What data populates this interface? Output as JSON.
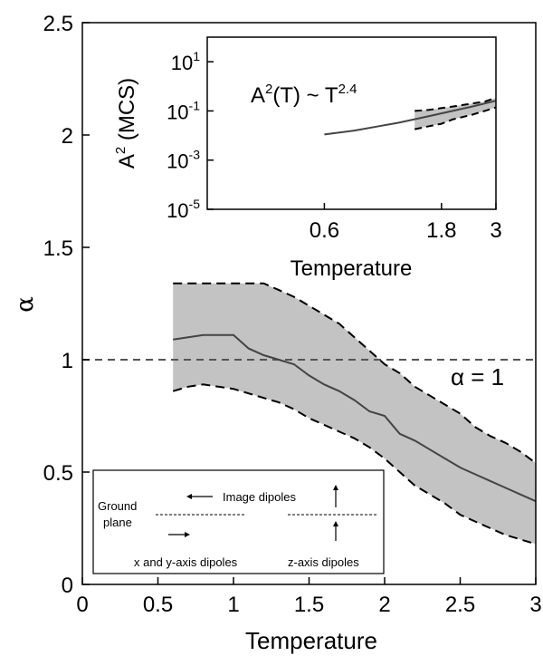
{
  "chart_data": [
    {
      "type": "line",
      "title": "",
      "xlabel": "Temperature",
      "ylabel": "α",
      "xlim": [
        0,
        3
      ],
      "ylim": [
        0,
        2.5
      ],
      "x_ticks": [
        0,
        0.5,
        1,
        1.5,
        2,
        2.5,
        3
      ],
      "x_tick_labels": [
        "0",
        "0.5",
        "1",
        "1.5",
        "2",
        "2.5",
        "3"
      ],
      "y_ticks": [
        0,
        0.5,
        1,
        1.5,
        2,
        2.5
      ],
      "y_tick_labels": [
        "0",
        "0.5",
        "1",
        "1.5",
        "2",
        "2.5"
      ],
      "grid": false,
      "series": [
        {
          "role": "mean",
          "color": "#444444",
          "x": [
            0.6,
            0.7,
            0.8,
            0.9,
            1.0,
            1.1,
            1.2,
            1.3,
            1.4,
            1.5,
            1.6,
            1.7,
            1.8,
            1.9,
            2.0,
            2.1,
            2.2,
            2.3,
            2.4,
            2.5,
            2.6,
            2.7,
            2.8,
            2.9,
            3.0
          ],
          "y": [
            1.09,
            1.1,
            1.11,
            1.11,
            1.11,
            1.05,
            1.02,
            1.0,
            0.98,
            0.93,
            0.89,
            0.86,
            0.82,
            0.77,
            0.75,
            0.67,
            0.64,
            0.6,
            0.56,
            0.52,
            0.49,
            0.46,
            0.43,
            0.4,
            0.37
          ]
        },
        {
          "role": "upper-bound",
          "color": "#000000",
          "dashed": true,
          "x": [
            0.6,
            0.7,
            0.8,
            0.9,
            1.0,
            1.1,
            1.2,
            1.3,
            1.4,
            1.5,
            1.6,
            1.7,
            1.8,
            1.9,
            2.0,
            2.1,
            2.2,
            2.3,
            2.4,
            2.5,
            2.6,
            2.7,
            2.8,
            2.9,
            3.0
          ],
          "y": [
            1.34,
            1.34,
            1.34,
            1.34,
            1.34,
            1.34,
            1.34,
            1.31,
            1.28,
            1.24,
            1.2,
            1.16,
            1.1,
            1.04,
            0.98,
            0.94,
            0.88,
            0.84,
            0.8,
            0.76,
            0.7,
            0.66,
            0.63,
            0.59,
            0.54
          ]
        },
        {
          "role": "lower-bound",
          "color": "#000000",
          "dashed": true,
          "x": [
            0.6,
            0.7,
            0.8,
            0.9,
            1.0,
            1.1,
            1.2,
            1.3,
            1.4,
            1.5,
            1.6,
            1.7,
            1.8,
            1.9,
            2.0,
            2.1,
            2.2,
            2.3,
            2.4,
            2.5,
            2.6,
            2.7,
            2.8,
            2.9,
            3.0
          ],
          "y": [
            0.86,
            0.88,
            0.89,
            0.88,
            0.87,
            0.85,
            0.83,
            0.81,
            0.78,
            0.74,
            0.71,
            0.68,
            0.65,
            0.61,
            0.56,
            0.5,
            0.44,
            0.4,
            0.36,
            0.31,
            0.28,
            0.25,
            0.22,
            0.2,
            0.18
          ]
        }
      ],
      "reference_line": {
        "y": 1,
        "label": "α = 1",
        "color": "#555555",
        "dashed": true
      },
      "band_color": "#c3c3c3",
      "legend": {
        "placement": "bottom-left",
        "ground_plane_label_1": "Ground",
        "ground_plane_label_2": "plane",
        "image_dipoles_label": "Image dipoles",
        "xy_dipoles_label": "x and y-axis dipoles",
        "z_dipoles_label": "z-axis dipoles"
      }
    },
    {
      "type": "line",
      "inset": true,
      "placement": "top-right",
      "title": "",
      "annotation": "A²(T) ~ T^2.4",
      "annotation_parts": [
        "A",
        "2",
        "(T) ~ T",
        "2.4"
      ],
      "xlabel": "Temperature",
      "ylabel_parts": [
        "A",
        "2",
        " (MCS)"
      ],
      "x_scale": "log",
      "y_scale": "log",
      "xlim": [
        0.2,
        3
      ],
      "ylim": [
        1e-05,
        100
      ],
      "x_ticks": [
        0.6,
        1.8,
        3
      ],
      "x_tick_labels": [
        "0.6",
        "1.8",
        "3"
      ],
      "y_ticks": [
        1e-05,
        0.001,
        0.1,
        10
      ],
      "y_tick_labels": [
        {
          "base": "10",
          "exp": "-5"
        },
        {
          "base": "10",
          "exp": "-3"
        },
        {
          "base": "10",
          "exp": "-1"
        },
        {
          "base": "10",
          "exp": "1"
        }
      ],
      "series": [
        {
          "role": "mean",
          "color": "#444444",
          "x": [
            0.6,
            0.8,
            1.0,
            1.2,
            1.4,
            1.7,
            2.0,
            2.4,
            3.0
          ],
          "y": [
            0.011,
            0.016,
            0.024,
            0.033,
            0.046,
            0.07,
            0.1,
            0.15,
            0.26
          ]
        },
        {
          "role": "upper-bound",
          "dashed": true,
          "x": [
            1.4,
            1.6,
            1.8,
            2.0,
            2.4,
            2.7,
            3.0
          ],
          "y": [
            0.1,
            0.11,
            0.13,
            0.15,
            0.2,
            0.24,
            0.34
          ]
        },
        {
          "role": "lower-bound",
          "dashed": true,
          "x": [
            1.4,
            1.6,
            1.8,
            2.0,
            2.4,
            2.7,
            3.0
          ],
          "y": [
            0.018,
            0.024,
            0.03,
            0.045,
            0.07,
            0.1,
            0.14
          ]
        }
      ]
    }
  ]
}
